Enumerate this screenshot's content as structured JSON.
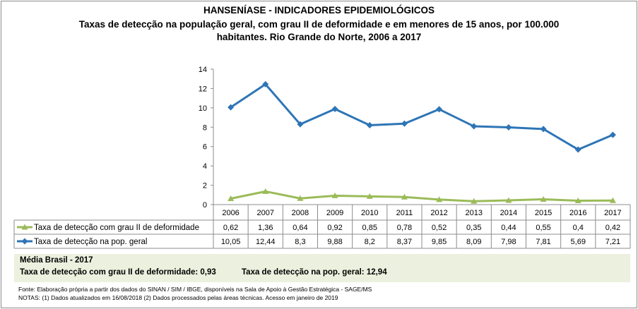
{
  "header": {
    "title": "HANSENÍASE - INDICADORES EPIDEMIOLÓGICOS",
    "subtitle_line1": "Taxas de detecção na população geral, com grau II de deformidade e em menores de 15 anos, por 100.000",
    "subtitle_line2": "habitantes. Rio Grande do Norte, 2006 a 2017"
  },
  "chart_data": {
    "type": "line",
    "title": "HANSENÍASE - INDICADORES EPIDEMIOLÓGICOS",
    "categories": [
      "2006",
      "2007",
      "2008",
      "2009",
      "2010",
      "2011",
      "2012",
      "2013",
      "2014",
      "2015",
      "2016",
      "2017"
    ],
    "ylim": [
      0,
      14
    ],
    "yticks": [
      "0",
      "2",
      "4",
      "6",
      "8",
      "10",
      "12",
      "14"
    ],
    "grid": false,
    "legend": "data-table",
    "series": [
      {
        "name": "Taxa de detecção com grau II de deformidade",
        "color": "#9bbb59",
        "marker": "triangle",
        "values": [
          0.62,
          1.36,
          0.64,
          0.92,
          0.85,
          0.78,
          0.52,
          0.35,
          0.44,
          0.55,
          0.4,
          0.42
        ],
        "labels": [
          "0,62",
          "1,36",
          "0,64",
          "0,92",
          "0,85",
          "0,78",
          "0,52",
          "0,35",
          "0,44",
          "0,55",
          "0,4",
          "0,42"
        ]
      },
      {
        "name": "Taxa de detecção na pop. geral",
        "color": "#2e75b6",
        "marker": "diamond",
        "values": [
          10.05,
          12.44,
          8.3,
          9.88,
          8.2,
          8.37,
          9.85,
          8.09,
          7.98,
          7.81,
          5.69,
          7.21
        ],
        "labels": [
          "10,05",
          "12,44",
          "8,3",
          "9,88",
          "8,2",
          "8,37",
          "9,85",
          "8,09",
          "7,98",
          "7,81",
          "5,69",
          "7,21"
        ]
      }
    ]
  },
  "media": {
    "title": "Média Brasil - 2017",
    "grau2": "Taxa de detecção com grau II de deformidade: 0,93",
    "geral": "Taxa de detecção na pop. geral: 12,94"
  },
  "footer": {
    "fonte": "Fonte:  Elaboração própria a partir dos dados do  SINAN / SIM / IBGE, disponíveis na Sala de Apoio à Gestão Estratégica -  SAGE/MS",
    "notas": "NOTAS: (1) Dados atualizados em 16/08/2018 (2) Dados processados pelas áreas técnicas. Acesso em janeiro de 2019"
  }
}
